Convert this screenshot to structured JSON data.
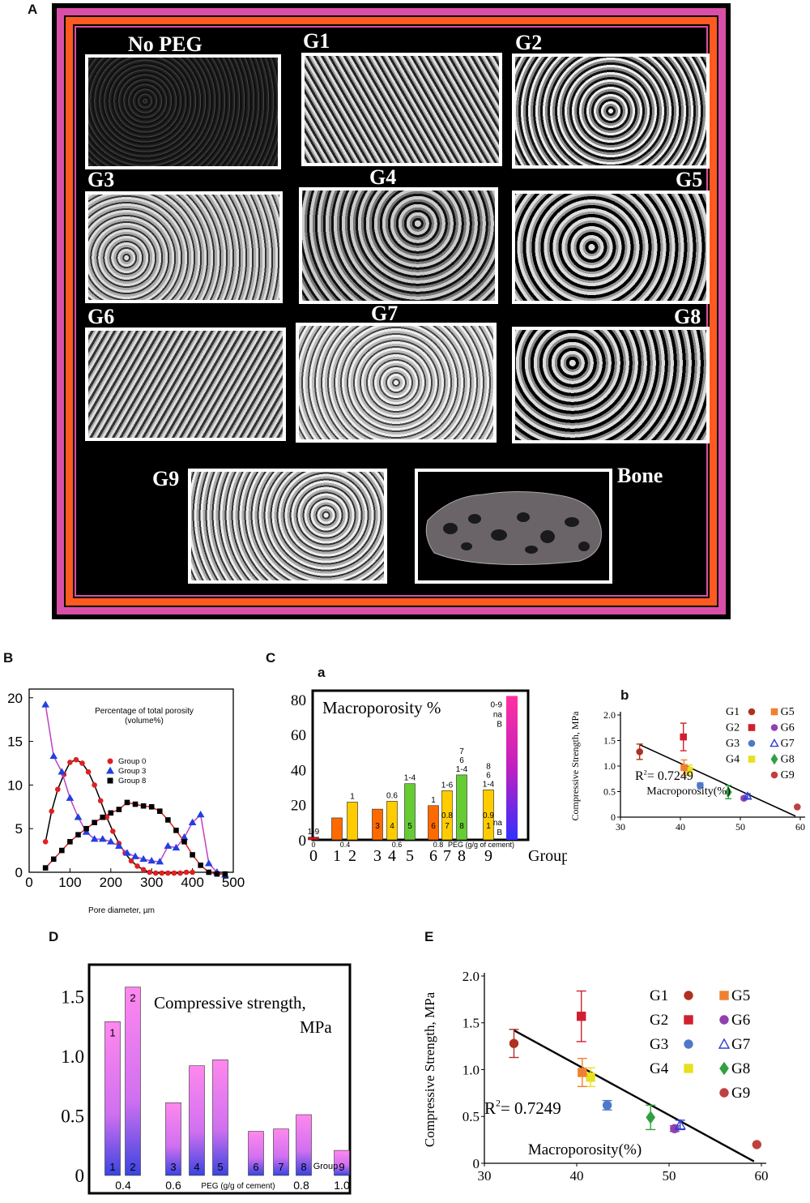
{
  "panel_labels": {
    "A": "A",
    "B": "B",
    "C": "C",
    "Ca": "a",
    "Cb": "b",
    "D": "D",
    "E": "E"
  },
  "panelA": {
    "tiles": [
      "No PEG",
      "G1",
      "G2",
      "G3",
      "G4",
      "G5",
      "G6",
      "G7",
      "G8",
      "G9",
      "Bone"
    ],
    "colors": {
      "outer_border": "#d94fa8",
      "inner_border": "#ff5a1f",
      "background": "#000000"
    }
  },
  "chart_data": [
    {
      "id": "B",
      "type": "line",
      "title": "Percentage of total porosity (volume%)",
      "title_lines": [
        "Percentage of total porosity",
        "(volume%)"
      ],
      "xlabel": "Pore diameter, µm",
      "ylabel": "",
      "xlim": [
        0,
        500
      ],
      "ylim": [
        0,
        21
      ],
      "xticks": [
        "0",
        "100",
        "200",
        "300",
        "400",
        "500"
      ],
      "yticks": [
        "0",
        "5",
        "10",
        "15",
        "20"
      ],
      "legend": "inside top-right",
      "series": [
        {
          "name": "Group 0",
          "color": "#e02020",
          "marker": "circle",
          "line_color": "#000000",
          "x": [
            40,
            55,
            70,
            85,
            100,
            115,
            130,
            145,
            160,
            175,
            190,
            205,
            220,
            235,
            250,
            265,
            280,
            295,
            310,
            325,
            340,
            355,
            370,
            385,
            400
          ],
          "y": [
            3.5,
            7,
            9.5,
            11.2,
            12.6,
            12.9,
            12.5,
            11.5,
            10,
            8.2,
            6.3,
            4.7,
            3.3,
            2.2,
            1.3,
            0.7,
            0.3,
            0,
            -0.1,
            -0.1,
            -0.1,
            -0.1,
            -0.1,
            0,
            0
          ]
        },
        {
          "name": "Group 3",
          "color": "#2040e0",
          "marker": "triangle",
          "line_color": "#c040c0",
          "x": [
            40,
            60,
            80,
            100,
            120,
            140,
            160,
            180,
            200,
            220,
            240,
            260,
            280,
            300,
            320,
            340,
            360,
            380,
            400,
            420,
            440,
            460,
            480
          ],
          "y": [
            19.2,
            13.3,
            11.5,
            8.5,
            6.3,
            4.6,
            3.8,
            3.8,
            3.5,
            3.0,
            2.2,
            1.8,
            1.5,
            1.3,
            1.2,
            3.0,
            2.8,
            4.0,
            5.7,
            6.6,
            1.0,
            0,
            -0.3
          ]
        },
        {
          "name": "Group 8",
          "color": "#000000",
          "marker": "square",
          "line_color": "#e02020",
          "x": [
            40,
            60,
            80,
            100,
            120,
            140,
            160,
            180,
            200,
            220,
            240,
            260,
            280,
            300,
            320,
            340,
            360,
            380,
            400,
            420,
            440,
            460,
            480
          ],
          "y": [
            0.5,
            1.5,
            2.5,
            3.5,
            4.3,
            5.0,
            5.7,
            6.3,
            6.8,
            7.2,
            8.0,
            7.8,
            7.6,
            7.5,
            7.0,
            6.0,
            4.8,
            3.5,
            2.0,
            0.8,
            0,
            -0.2,
            -0.2
          ]
        }
      ]
    },
    {
      "id": "Ca",
      "type": "bar",
      "title": "Macroporosity %",
      "xlabel": "PEG (g/g of cement)",
      "categories": [
        "0",
        "1",
        "2",
        "3",
        "4",
        "5",
        "6",
        "7",
        "8",
        "9"
      ],
      "x_extra_label": "Group",
      "values": [
        1.5,
        12.5,
        21.5,
        17.5,
        22,
        32,
        19.5,
        28,
        37,
        28.5
      ],
      "colors": [
        "#e01010",
        "#ff6a00",
        "#ffcc00",
        "#ff6a00",
        "#ffcc00",
        "#66cc33",
        "#ff6a00",
        "#ffcc00",
        "#66cc33",
        "#ffcc00"
      ],
      "bar_top_labels": [
        "1-9",
        "",
        "1",
        "",
        "0.6",
        "1-4",
        "1",
        "1-6",
        "7\n6\n1-4",
        "8\n6\n1-4"
      ],
      "bar_inner_labels": [
        "",
        "",
        "",
        "3",
        "4",
        "5",
        "6",
        "0.8\n7",
        "8",
        "0.9\n1"
      ],
      "peg_labels": [
        {
          "label": "0",
          "at": 0
        },
        {
          "label": "0.4",
          "at": 1.5
        },
        {
          "label": "0.6",
          "at": 4
        },
        {
          "label": "0.8",
          "at": 6.5
        }
      ],
      "bone_bar": {
        "value": 82,
        "top_labels": [
          "0-9",
          "na",
          "B"
        ],
        "bottom_labels": [
          "na",
          "B"
        ]
      },
      "ylim": [
        0,
        85
      ],
      "yticks": [
        "0",
        "20",
        "40",
        "60",
        "80"
      ]
    },
    {
      "id": "Cb",
      "type": "scatter",
      "xlabel": "Macroporosity(%)",
      "ylabel": "Compressive Strength, MPa",
      "annotation": "R",
      "annotation_sup": "2",
      "annotation_rest": "= 0.7249",
      "xlim": [
        30,
        60
      ],
      "ylim": [
        0,
        2.0
      ],
      "xticks": [
        "30",
        "40",
        "50",
        "60"
      ],
      "yticks": [
        "0",
        "0.5",
        "1.0",
        "1.5",
        "2.0"
      ],
      "points": [
        {
          "name": "G1",
          "x": 33.2,
          "y": 1.28,
          "err": 0.15,
          "color": "#b03020",
          "marker": "circle"
        },
        {
          "name": "G2",
          "x": 40.5,
          "y": 1.57,
          "err": 0.27,
          "color": "#d02030",
          "marker": "square"
        },
        {
          "name": "G3",
          "x": 43.3,
          "y": 0.62,
          "err": 0.05,
          "color": "#5078c8",
          "marker": "circle"
        },
        {
          "name": "G4",
          "x": 41.5,
          "y": 0.92,
          "err": 0.1,
          "color": "#e8e020",
          "marker": "square"
        },
        {
          "name": "G5",
          "x": 40.6,
          "y": 0.97,
          "err": 0.15,
          "color": "#f08030",
          "marker": "square"
        },
        {
          "name": "G6",
          "x": 50.6,
          "y": 0.37,
          "err": 0.03,
          "color": "#9040b0",
          "marker": "circle"
        },
        {
          "name": "G7",
          "x": 51.2,
          "y": 0.41,
          "err": 0.05,
          "color": "#3040d0",
          "marker": "triangle"
        },
        {
          "name": "G8",
          "x": 48.0,
          "y": 0.49,
          "err": 0.13,
          "color": "#30a040",
          "marker": "diamond"
        },
        {
          "name": "G9",
          "x": 59.5,
          "y": 0.2,
          "err": 0,
          "color": "#c04040",
          "marker": "circle"
        }
      ],
      "fit_line": {
        "x": [
          33.2,
          59.2
        ],
        "y": [
          1.42,
          0.02
        ]
      },
      "legend": "top-right"
    },
    {
      "id": "D",
      "type": "bar",
      "title": "Compressive strength, MPa",
      "title_lines": [
        "Compressive strength,",
        "MPa"
      ],
      "xlabel": "PEG (g/g of cement)",
      "categories": [
        "1",
        "2",
        "3",
        "4",
        "5",
        "6",
        "7",
        "8",
        "9"
      ],
      "values": [
        1.29,
        1.58,
        0.61,
        0.92,
        0.97,
        0.37,
        0.39,
        0.51,
        0.21
      ],
      "ylim": [
        0,
        1.7
      ],
      "yticks": [
        "0",
        "0.5",
        "1.0",
        "1.5"
      ],
      "group_label": "Group",
      "peg_labels": [
        {
          "label": "0.4",
          "at": 1.5
        },
        {
          "label": "0.6",
          "at": 3
        },
        {
          "label": "0.8",
          "at": 7
        },
        {
          "label": "1.0",
          "at": 9
        }
      ],
      "bar_gradient": [
        "#ff88ee",
        "#3a44e0"
      ]
    },
    {
      "id": "E",
      "type": "scatter",
      "xlabel": "Macroporosity(%)",
      "ylabel": "Compressive Strength, MPa",
      "annotation": "R",
      "annotation_sup": "2",
      "annotation_rest": "= 0.7249",
      "xlim": [
        30,
        60
      ],
      "ylim": [
        0,
        2.0
      ],
      "xticks": [
        "30",
        "40",
        "50",
        "60"
      ],
      "yticks": [
        "0",
        "0.5",
        "1.0",
        "1.5",
        "2.0"
      ],
      "points": [
        {
          "name": "G1",
          "x": 33.2,
          "y": 1.28,
          "err": 0.15,
          "color": "#b03020",
          "marker": "circle"
        },
        {
          "name": "G2",
          "x": 40.5,
          "y": 1.57,
          "err": 0.27,
          "color": "#d02030",
          "marker": "square"
        },
        {
          "name": "G3",
          "x": 43.3,
          "y": 0.62,
          "err": 0.05,
          "color": "#5078c8",
          "marker": "circle"
        },
        {
          "name": "G4",
          "x": 41.5,
          "y": 0.92,
          "err": 0.1,
          "color": "#e8e020",
          "marker": "square"
        },
        {
          "name": "G5",
          "x": 40.6,
          "y": 0.97,
          "err": 0.15,
          "color": "#f08030",
          "marker": "square"
        },
        {
          "name": "G6",
          "x": 50.6,
          "y": 0.37,
          "err": 0.03,
          "color": "#9040b0",
          "marker": "circle"
        },
        {
          "name": "G7",
          "x": 51.2,
          "y": 0.41,
          "err": 0.05,
          "color": "#3040d0",
          "marker": "triangle"
        },
        {
          "name": "G8",
          "x": 48.0,
          "y": 0.49,
          "err": 0.13,
          "color": "#30a040",
          "marker": "diamond"
        },
        {
          "name": "G9",
          "x": 59.5,
          "y": 0.2,
          "err": 0,
          "color": "#c04040",
          "marker": "circle"
        }
      ],
      "fit_line": {
        "x": [
          33.2,
          59.2
        ],
        "y": [
          1.42,
          0.02
        ]
      },
      "legend": "top-right"
    }
  ]
}
